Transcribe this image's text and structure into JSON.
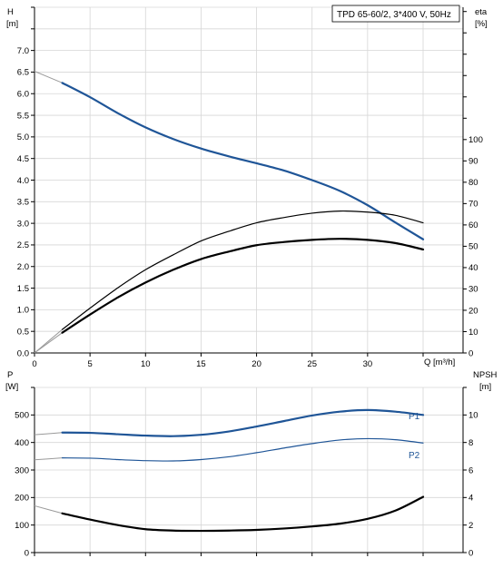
{
  "chart_data": [
    {
      "type": "line",
      "title": "TPD 65-60/2, 3*400 V, 50Hz",
      "xlabel": "Q [m³/h]",
      "ylabel_left": [
        "H",
        "[m]"
      ],
      "ylabel_right": [
        "eta",
        "[%]"
      ],
      "xlim": [
        0,
        35
      ],
      "ylim_left": [
        0,
        8
      ],
      "ylim_right": [
        0,
        162
      ],
      "x_ticks": [
        "0",
        "5",
        "10",
        "15",
        "20",
        "25",
        "30"
      ],
      "y_left_ticks": [
        "0.0",
        "0.5",
        "1.0",
        "1.5",
        "2.0",
        "2.5",
        "3.0",
        "3.5",
        "4.0",
        "4.5",
        "5.0",
        "5.5",
        "6.0",
        "6.5",
        "7.0"
      ],
      "y_right_ticks": [
        "0",
        "10",
        "20",
        "30",
        "40",
        "50",
        "60",
        "70",
        "80",
        "90",
        "100"
      ],
      "grid": true,
      "series": [
        {
          "axis": "left",
          "color": "#1f5597",
          "width": 2.2,
          "values": [
            [
              0,
              6.52
            ],
            [
              2.5,
              6.25
            ],
            [
              5,
              5.92
            ],
            [
              7.5,
              5.55
            ],
            [
              10,
              5.22
            ],
            [
              12.5,
              4.95
            ],
            [
              15,
              4.73
            ],
            [
              17.5,
              4.55
            ],
            [
              20,
              4.39
            ],
            [
              22.5,
              4.22
            ],
            [
              25,
              4.0
            ],
            [
              27.5,
              3.75
            ],
            [
              30,
              3.42
            ],
            [
              32.5,
              3.02
            ],
            [
              35,
              2.63
            ]
          ]
        },
        {
          "axis": "right",
          "color": "#000000",
          "width": 1.2,
          "values": [
            [
              0,
              0
            ],
            [
              2.5,
              11
            ],
            [
              5,
              21
            ],
            [
              7.5,
              30.5
            ],
            [
              10,
              39
            ],
            [
              12.5,
              46
            ],
            [
              15,
              52.5
            ],
            [
              17.5,
              57
            ],
            [
              20,
              61
            ],
            [
              22.5,
              63.5
            ],
            [
              25,
              65.5
            ],
            [
              27.5,
              66.5
            ],
            [
              30,
              66
            ],
            [
              32.5,
              64.5
            ],
            [
              35,
              61
            ]
          ]
        },
        {
          "axis": "right",
          "color": "#000000",
          "width": 2.2,
          "values": [
            [
              0,
              0
            ],
            [
              2.5,
              9.5
            ],
            [
              5,
              18
            ],
            [
              7.5,
              26
            ],
            [
              10,
              33
            ],
            [
              12.5,
              39
            ],
            [
              15,
              44
            ],
            [
              17.5,
              47.5
            ],
            [
              20,
              50.5
            ],
            [
              22.5,
              52
            ],
            [
              25,
              53
            ],
            [
              27.5,
              53.5
            ],
            [
              30,
              53
            ],
            [
              32.5,
              51.5
            ],
            [
              35,
              48.5
            ]
          ]
        }
      ]
    },
    {
      "type": "line",
      "xlim": [
        0,
        35
      ],
      "ylabel_left": [
        "P",
        "[W]"
      ],
      "ylabel_right": [
        "NPSH",
        "[m]"
      ],
      "ylim_left": [
        0,
        600
      ],
      "ylim_right": [
        0,
        12
      ],
      "y_left_ticks": [
        "0",
        "100",
        "200",
        "300",
        "400",
        "500"
      ],
      "y_right_ticks": [
        "0",
        "2",
        "4",
        "6",
        "8",
        "10"
      ],
      "grid": true,
      "series": [
        {
          "name": "P1",
          "axis": "left",
          "color": "#1f5597",
          "width": 2.2,
          "values": [
            [
              0,
              428
            ],
            [
              2.5,
              436
            ],
            [
              5,
              435
            ],
            [
              7.5,
              430
            ],
            [
              10,
              425
            ],
            [
              12.5,
              423
            ],
            [
              15,
              428
            ],
            [
              17.5,
              440
            ],
            [
              20,
              458
            ],
            [
              22.5,
              478
            ],
            [
              25,
              498
            ],
            [
              27.5,
              512
            ],
            [
              30,
              518
            ],
            [
              32.5,
              512
            ],
            [
              35,
              500
            ]
          ]
        },
        {
          "name": "P2",
          "axis": "left",
          "color": "#1f5597",
          "width": 1.2,
          "values": [
            [
              0,
              337
            ],
            [
              2.5,
              344
            ],
            [
              5,
              343
            ],
            [
              7.5,
              338
            ],
            [
              10,
              334
            ],
            [
              12.5,
              333
            ],
            [
              15,
              338
            ],
            [
              17.5,
              348
            ],
            [
              20,
              363
            ],
            [
              22.5,
              380
            ],
            [
              25,
              396
            ],
            [
              27.5,
              409
            ],
            [
              30,
              414
            ],
            [
              32.5,
              410
            ],
            [
              35,
              398
            ]
          ]
        },
        {
          "axis": "right",
          "color": "#000000",
          "width": 2.2,
          "values": [
            [
              0,
              3.4
            ],
            [
              2.5,
              2.85
            ],
            [
              5,
              2.4
            ],
            [
              7.5,
              2.0
            ],
            [
              10,
              1.7
            ],
            [
              12.5,
              1.6
            ],
            [
              15,
              1.58
            ],
            [
              17.5,
              1.6
            ],
            [
              20,
              1.65
            ],
            [
              22.5,
              1.75
            ],
            [
              25,
              1.9
            ],
            [
              27.5,
              2.1
            ],
            [
              30,
              2.45
            ],
            [
              32.5,
              3.05
            ],
            [
              35,
              4.05
            ]
          ]
        }
      ]
    }
  ]
}
